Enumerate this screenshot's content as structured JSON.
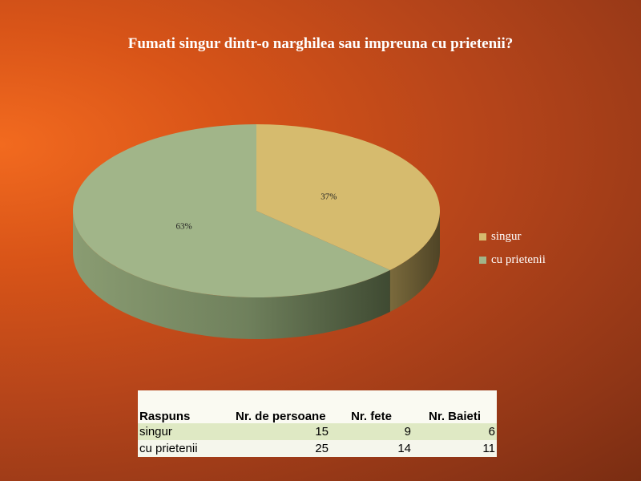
{
  "slide": {
    "title": "Fumati singur dintr-o narghilea sau impreuna cu prietenii?"
  },
  "chart_data": {
    "type": "pie",
    "style": "3d",
    "title": "Fumati singur dintr-o narghilea sau impreuna cu prietenii?",
    "categories": [
      "singur",
      "cu prietenii"
    ],
    "values": [
      37,
      63
    ],
    "value_labels": [
      "37%",
      "63%"
    ],
    "colors": [
      "#d6bb6e",
      "#a1b589"
    ],
    "legend_position": "right"
  },
  "table": {
    "headers": [
      "Raspuns",
      "Nr. de persoane",
      "Nr. fete",
      "Nr. Baieti"
    ],
    "rows": [
      {
        "label": "singur",
        "persons": "15",
        "girls": "9",
        "boys": "6"
      },
      {
        "label": "cu prietenii",
        "persons": "25",
        "girls": "14",
        "boys": "11"
      }
    ]
  }
}
